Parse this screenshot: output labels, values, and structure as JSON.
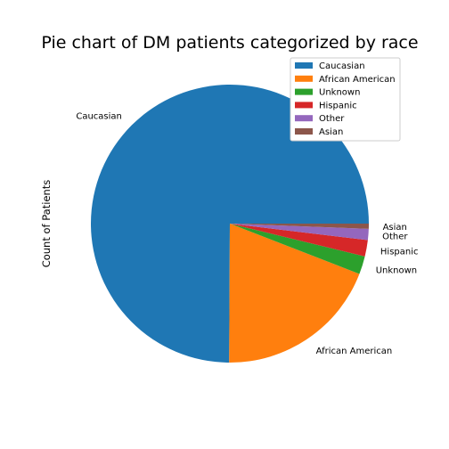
{
  "chart_data": {
    "type": "pie",
    "title": "Pie chart of DM patients categorized by race",
    "ylabel": "Count of Patients",
    "legend_placement": "top-right",
    "slices": [
      {
        "label": "Caucasian",
        "value": 75.0,
        "color": "#1f77b4"
      },
      {
        "label": "African American",
        "value": 19.2,
        "color": "#ff7f0e"
      },
      {
        "label": "Unknown",
        "value": 2.1,
        "color": "#2ca02c"
      },
      {
        "label": "Hispanic",
        "value": 1.9,
        "color": "#d62728"
      },
      {
        "label": "Other",
        "value": 1.3,
        "color": "#9467bd"
      },
      {
        "label": "Asian",
        "value": 0.6,
        "color": "#8c564b"
      }
    ]
  }
}
